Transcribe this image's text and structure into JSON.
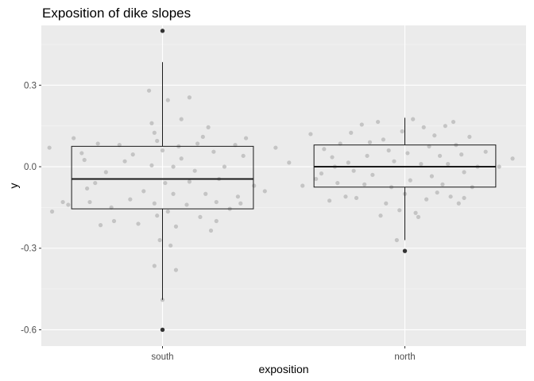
{
  "chart_data": {
    "type": "boxplot",
    "title": "Exposition of dike slopes",
    "xlabel": "exposition",
    "ylabel": "y",
    "categories": [
      "south",
      "north"
    ],
    "ylim": [
      -0.66,
      0.52
    ],
    "yticks": [
      -0.6,
      -0.3,
      0.0,
      0.3
    ],
    "ytick_labels": [
      "-0.6",
      "-0.3",
      "0.0",
      "0.3"
    ],
    "grid": true,
    "legend": "none",
    "colors": {
      "panel_background": "#ebebeb",
      "grid_major": "#ffffff",
      "grid_minor": "#f5f5f5",
      "jitter_points": "#bdbdbd",
      "outliers": "#333333",
      "box_line": "#1a1a1a"
    },
    "boxes": [
      {
        "name": "south",
        "q1": -0.155,
        "median": -0.045,
        "q3": 0.075,
        "whisker_low": -0.49,
        "whisker_high": 0.385,
        "outliers": [
          0.5,
          -0.6
        ],
        "jitter": [
          [
            -0.42,
            0.07
          ],
          [
            -0.37,
            -0.13
          ],
          [
            -0.41,
            -0.165
          ],
          [
            -0.33,
            0.105
          ],
          [
            -0.35,
            -0.14
          ],
          [
            -0.3,
            0.05
          ],
          [
            -0.29,
            0.025
          ],
          [
            -0.28,
            -0.08
          ],
          [
            -0.27,
            -0.13
          ],
          [
            -0.25,
            -0.06
          ],
          [
            -0.24,
            0.085
          ],
          [
            -0.23,
            -0.215
          ],
          [
            -0.21,
            -0.02
          ],
          [
            -0.19,
            -0.15
          ],
          [
            -0.18,
            -0.2
          ],
          [
            -0.16,
            0.08
          ],
          [
            -0.14,
            0.02
          ],
          [
            -0.12,
            -0.12
          ],
          [
            -0.11,
            0.045
          ],
          [
            -0.09,
            -0.21
          ],
          [
            -0.07,
            -0.09
          ],
          [
            -0.05,
            0.28
          ],
          [
            -0.04,
            0.005
          ],
          [
            -0.03,
            -0.135
          ],
          [
            -0.02,
            -0.18
          ],
          [
            -0.04,
            0.16
          ],
          [
            -0.03,
            0.125
          ],
          [
            -0.02,
            0.095
          ],
          [
            -0.03,
            -0.365
          ],
          [
            -0.01,
            -0.27
          ],
          [
            0.0,
            0.06
          ],
          [
            0.0,
            -0.49
          ],
          [
            0.01,
            -0.06
          ],
          [
            0.02,
            0.245
          ],
          [
            0.02,
            -0.165
          ],
          [
            0.03,
            -0.29
          ],
          [
            0.04,
            -0.1
          ],
          [
            0.04,
            0.0
          ],
          [
            0.05,
            -0.38
          ],
          [
            0.05,
            -0.22
          ],
          [
            0.06,
            0.075
          ],
          [
            0.07,
            0.03
          ],
          [
            0.07,
            0.175
          ],
          [
            0.09,
            -0.14
          ],
          [
            0.1,
            0.255
          ],
          [
            0.1,
            -0.055
          ],
          [
            0.12,
            -0.015
          ],
          [
            0.13,
            0.085
          ],
          [
            0.14,
            -0.185
          ],
          [
            0.15,
            0.11
          ],
          [
            0.16,
            -0.1
          ],
          [
            0.17,
            0.145
          ],
          [
            0.18,
            -0.235
          ],
          [
            0.19,
            0.055
          ],
          [
            0.2,
            -0.2
          ],
          [
            0.21,
            -0.045
          ],
          [
            0.23,
            0.0
          ],
          [
            0.25,
            -0.155
          ],
          [
            0.27,
            0.08
          ],
          [
            0.28,
            -0.11
          ],
          [
            0.29,
            -0.135
          ],
          [
            0.3,
            0.04
          ],
          [
            0.31,
            0.105
          ],
          [
            0.34,
            -0.07
          ],
          [
            0.38,
            -0.09
          ],
          [
            0.42,
            0.07
          ],
          [
            0.2,
            -0.13
          ]
        ]
      },
      {
        "name": "north",
        "q1": -0.075,
        "median": 0.0,
        "q3": 0.08,
        "whisker_low": -0.27,
        "whisker_high": 0.18,
        "outliers": [
          -0.31
        ],
        "jitter": [
          [
            -0.43,
            0.015
          ],
          [
            -0.38,
            -0.07
          ],
          [
            -0.35,
            0.12
          ],
          [
            -0.33,
            -0.045
          ],
          [
            -0.31,
            -0.025
          ],
          [
            -0.3,
            0.065
          ],
          [
            -0.28,
            -0.125
          ],
          [
            -0.27,
            0.035
          ],
          [
            -0.26,
            0.0
          ],
          [
            -0.25,
            -0.06
          ],
          [
            -0.24,
            0.085
          ],
          [
            -0.22,
            -0.11
          ],
          [
            -0.21,
            0.015
          ],
          [
            -0.2,
            0.125
          ],
          [
            -0.19,
            -0.015
          ],
          [
            -0.18,
            -0.115
          ],
          [
            -0.16,
            0.155
          ],
          [
            -0.15,
            -0.065
          ],
          [
            -0.14,
            0.04
          ],
          [
            -0.13,
            0.09
          ],
          [
            -0.12,
            -0.03
          ],
          [
            -0.1,
            0.165
          ],
          [
            -0.09,
            -0.18
          ],
          [
            -0.08,
            0.1
          ],
          [
            -0.07,
            -0.135
          ],
          [
            -0.06,
            0.06
          ],
          [
            -0.05,
            -0.075
          ],
          [
            -0.04,
            0.02
          ],
          [
            -0.03,
            -0.27
          ],
          [
            -0.02,
            -0.16
          ],
          [
            -0.01,
            0.13
          ],
          [
            0.0,
            -0.1
          ],
          [
            0.01,
            0.05
          ],
          [
            0.02,
            -0.05
          ],
          [
            0.03,
            0.175
          ],
          [
            0.04,
            -0.17
          ],
          [
            0.05,
            -0.185
          ],
          [
            0.06,
            0.01
          ],
          [
            0.07,
            0.145
          ],
          [
            0.08,
            -0.12
          ],
          [
            0.09,
            0.075
          ],
          [
            0.1,
            -0.035
          ],
          [
            0.11,
            0.115
          ],
          [
            0.12,
            -0.095
          ],
          [
            0.13,
            0.04
          ],
          [
            0.14,
            -0.065
          ],
          [
            0.15,
            0.15
          ],
          [
            0.16,
            0.01
          ],
          [
            0.17,
            -0.11
          ],
          [
            0.18,
            0.165
          ],
          [
            0.2,
            -0.135
          ],
          [
            0.21,
            0.045
          ],
          [
            0.22,
            -0.02
          ],
          [
            0.24,
            0.11
          ],
          [
            0.25,
            -0.075
          ],
          [
            0.27,
            0.0
          ],
          [
            0.3,
            0.055
          ],
          [
            0.35,
            0.0
          ],
          [
            0.4,
            0.03
          ],
          [
            0.19,
            0.08
          ],
          [
            0.22,
            -0.115
          ]
        ]
      }
    ]
  }
}
